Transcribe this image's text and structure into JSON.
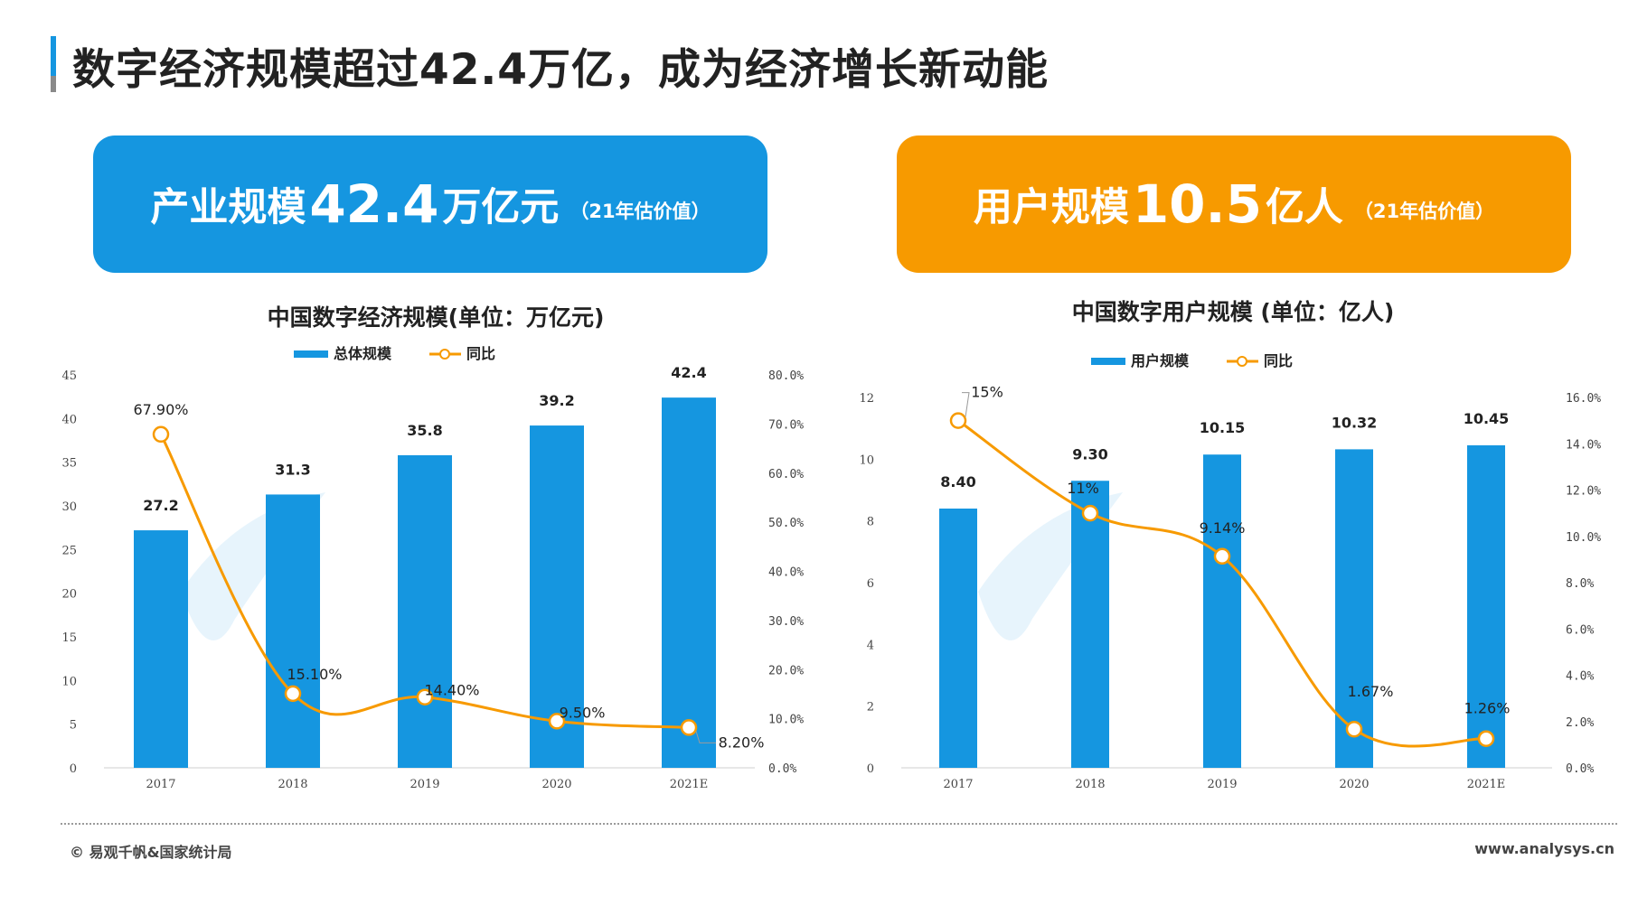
{
  "page": {
    "title": "数字经济规模超过42.4万亿，成为经济增长新动能"
  },
  "banners": [
    {
      "label": "产业规模",
      "value": "42.4",
      "unit": "万亿元",
      "note": "（21年估价值）",
      "color": "#1596e0"
    },
    {
      "label": "用户规模",
      "value": "10.5",
      "unit": "亿人",
      "note": "（21年估价值）",
      "color": "#f79a00"
    }
  ],
  "chart_data": [
    {
      "type": "bar",
      "title": "中国数字经济规模(单位：万亿元)",
      "categories": [
        "2017",
        "2018",
        "2019",
        "2020",
        "2021E"
      ],
      "series": [
        {
          "name": "总体规模",
          "type": "bar",
          "values": [
            27.2,
            31.3,
            35.8,
            39.2,
            42.4
          ],
          "labels": [
            "27.2",
            "31.3",
            "35.8",
            "39.2",
            "42.4"
          ],
          "color": "#1596e0"
        },
        {
          "name": "同比",
          "type": "line",
          "values": [
            67.9,
            15.1,
            14.4,
            9.5,
            8.2
          ],
          "labels": [
            "67.90%",
            "15.10%",
            "14.40%",
            "9.50%",
            "8.20%"
          ],
          "color": "#f79a00"
        }
      ],
      "ylim": [
        0,
        45
      ],
      "yticks": [
        "0",
        "5",
        "10",
        "15",
        "20",
        "25",
        "30",
        "35",
        "40",
        "45"
      ],
      "ylim_right": [
        0,
        80
      ],
      "yticks_right": [
        "0.0%",
        "10.0%",
        "20.0%",
        "30.0%",
        "40.0%",
        "50.0%",
        "60.0%",
        "70.0%",
        "80.0%"
      ],
      "legend": "top-center",
      "grid": false
    },
    {
      "type": "bar",
      "title": "中国数字用户规模 (单位：亿人)",
      "categories": [
        "2017",
        "2018",
        "2019",
        "2020",
        "2021E"
      ],
      "series": [
        {
          "name": "用户规模",
          "type": "bar",
          "values": [
            8.4,
            9.3,
            10.15,
            10.32,
            10.45
          ],
          "labels": [
            "8.40",
            "9.30",
            "10.15",
            "10.32",
            "10.45"
          ],
          "color": "#1596e0"
        },
        {
          "name": "同比",
          "type": "line",
          "values": [
            15,
            11,
            9.14,
            1.67,
            1.26
          ],
          "labels": [
            "15%",
            "11%",
            "9.14%",
            "1.67%",
            "1.26%"
          ],
          "color": "#f79a00"
        }
      ],
      "ylim": [
        0,
        12
      ],
      "yticks": [
        "0",
        "2",
        "4",
        "6",
        "8",
        "10",
        "12"
      ],
      "ylim_right": [
        0,
        16
      ],
      "yticks_right": [
        "0.0%",
        "2.0%",
        "4.0%",
        "6.0%",
        "8.0%",
        "10.0%",
        "12.0%",
        "14.0%",
        "16.0%"
      ],
      "legend": "top-center",
      "grid": false
    }
  ],
  "footer": {
    "source": "© 易观千帆&国家统计局",
    "site": "www.analysys.cn"
  }
}
